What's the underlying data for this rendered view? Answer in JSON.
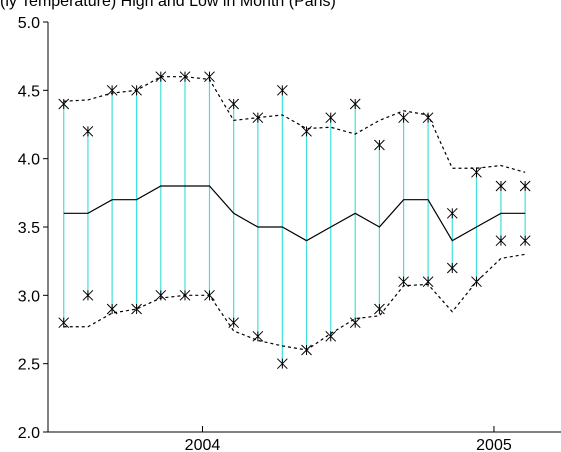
{
  "chart_data": {
    "type": "line",
    "title": "(ly Temperature) High and Low in Month (Paris)",
    "x": [
      2003.524,
      2003.607,
      2003.69,
      2003.774,
      2003.857,
      2003.94,
      2004.024,
      2004.107,
      2004.19,
      2004.274,
      2004.357,
      2004.44,
      2004.524,
      2004.607,
      2004.69,
      2004.774,
      2004.857,
      2004.94,
      2005.024,
      2005.107
    ],
    "series": [
      {
        "style": "marker",
        "color": "#000000",
        "values": [
          4.4,
          4.2,
          4.5,
          4.5,
          4.6,
          4.6,
          4.6,
          4.4,
          4.3,
          4.5,
          4.2,
          4.3,
          4.4,
          4.1,
          4.3,
          4.3,
          3.6,
          3.9,
          3.8,
          3.8
        ]
      },
      {
        "style": "marker",
        "color": "#000000",
        "values": [
          2.8,
          3.0,
          2.9,
          2.9,
          3.0,
          3.0,
          3.0,
          2.8,
          2.7,
          2.5,
          2.6,
          2.7,
          2.8,
          2.9,
          3.1,
          3.1,
          3.2,
          3.1,
          3.4,
          3.4
        ]
      },
      {
        "style": "solid",
        "color": "#000000",
        "values": [
          3.6,
          3.6,
          3.7,
          3.7,
          3.8,
          3.8,
          3.8,
          3.6,
          3.5,
          3.5,
          3.4,
          3.5,
          3.6,
          3.5,
          3.7,
          3.7,
          3.4,
          3.5,
          3.6,
          3.6
        ]
      },
      {
        "style": "dashed",
        "color": "#000000",
        "values": [
          4.42,
          4.43,
          4.48,
          4.5,
          4.6,
          4.6,
          4.58,
          4.28,
          4.3,
          4.32,
          4.22,
          4.23,
          4.18,
          4.28,
          4.35,
          4.32,
          3.93,
          3.93,
          3.95,
          3.9
        ]
      },
      {
        "style": "dashed",
        "color": "#000000",
        "values": [
          2.77,
          2.77,
          2.87,
          2.9,
          2.98,
          3.0,
          3.0,
          2.74,
          2.67,
          2.63,
          2.6,
          2.72,
          2.83,
          2.85,
          3.07,
          3.08,
          2.88,
          3.1,
          3.27,
          3.3
        ]
      }
    ],
    "range_color": "#40e0e0",
    "xlim": [
      2003.47,
      2005.23
    ],
    "xticks": [
      2004,
      2005
    ],
    "ylim": [
      2.0,
      5.0
    ],
    "yticks": [
      {
        "value": 2.0,
        "label": "2.0"
      },
      {
        "value": 2.5,
        "label": "2.5"
      },
      {
        "value": 3.0,
        "label": "3.0"
      },
      {
        "value": 3.5,
        "label": "3.5"
      },
      {
        "value": 4.0,
        "label": "4.0"
      },
      {
        "value": 4.5,
        "label": "4.5"
      },
      {
        "value": 5.0,
        "label": "5.0"
      }
    ]
  }
}
